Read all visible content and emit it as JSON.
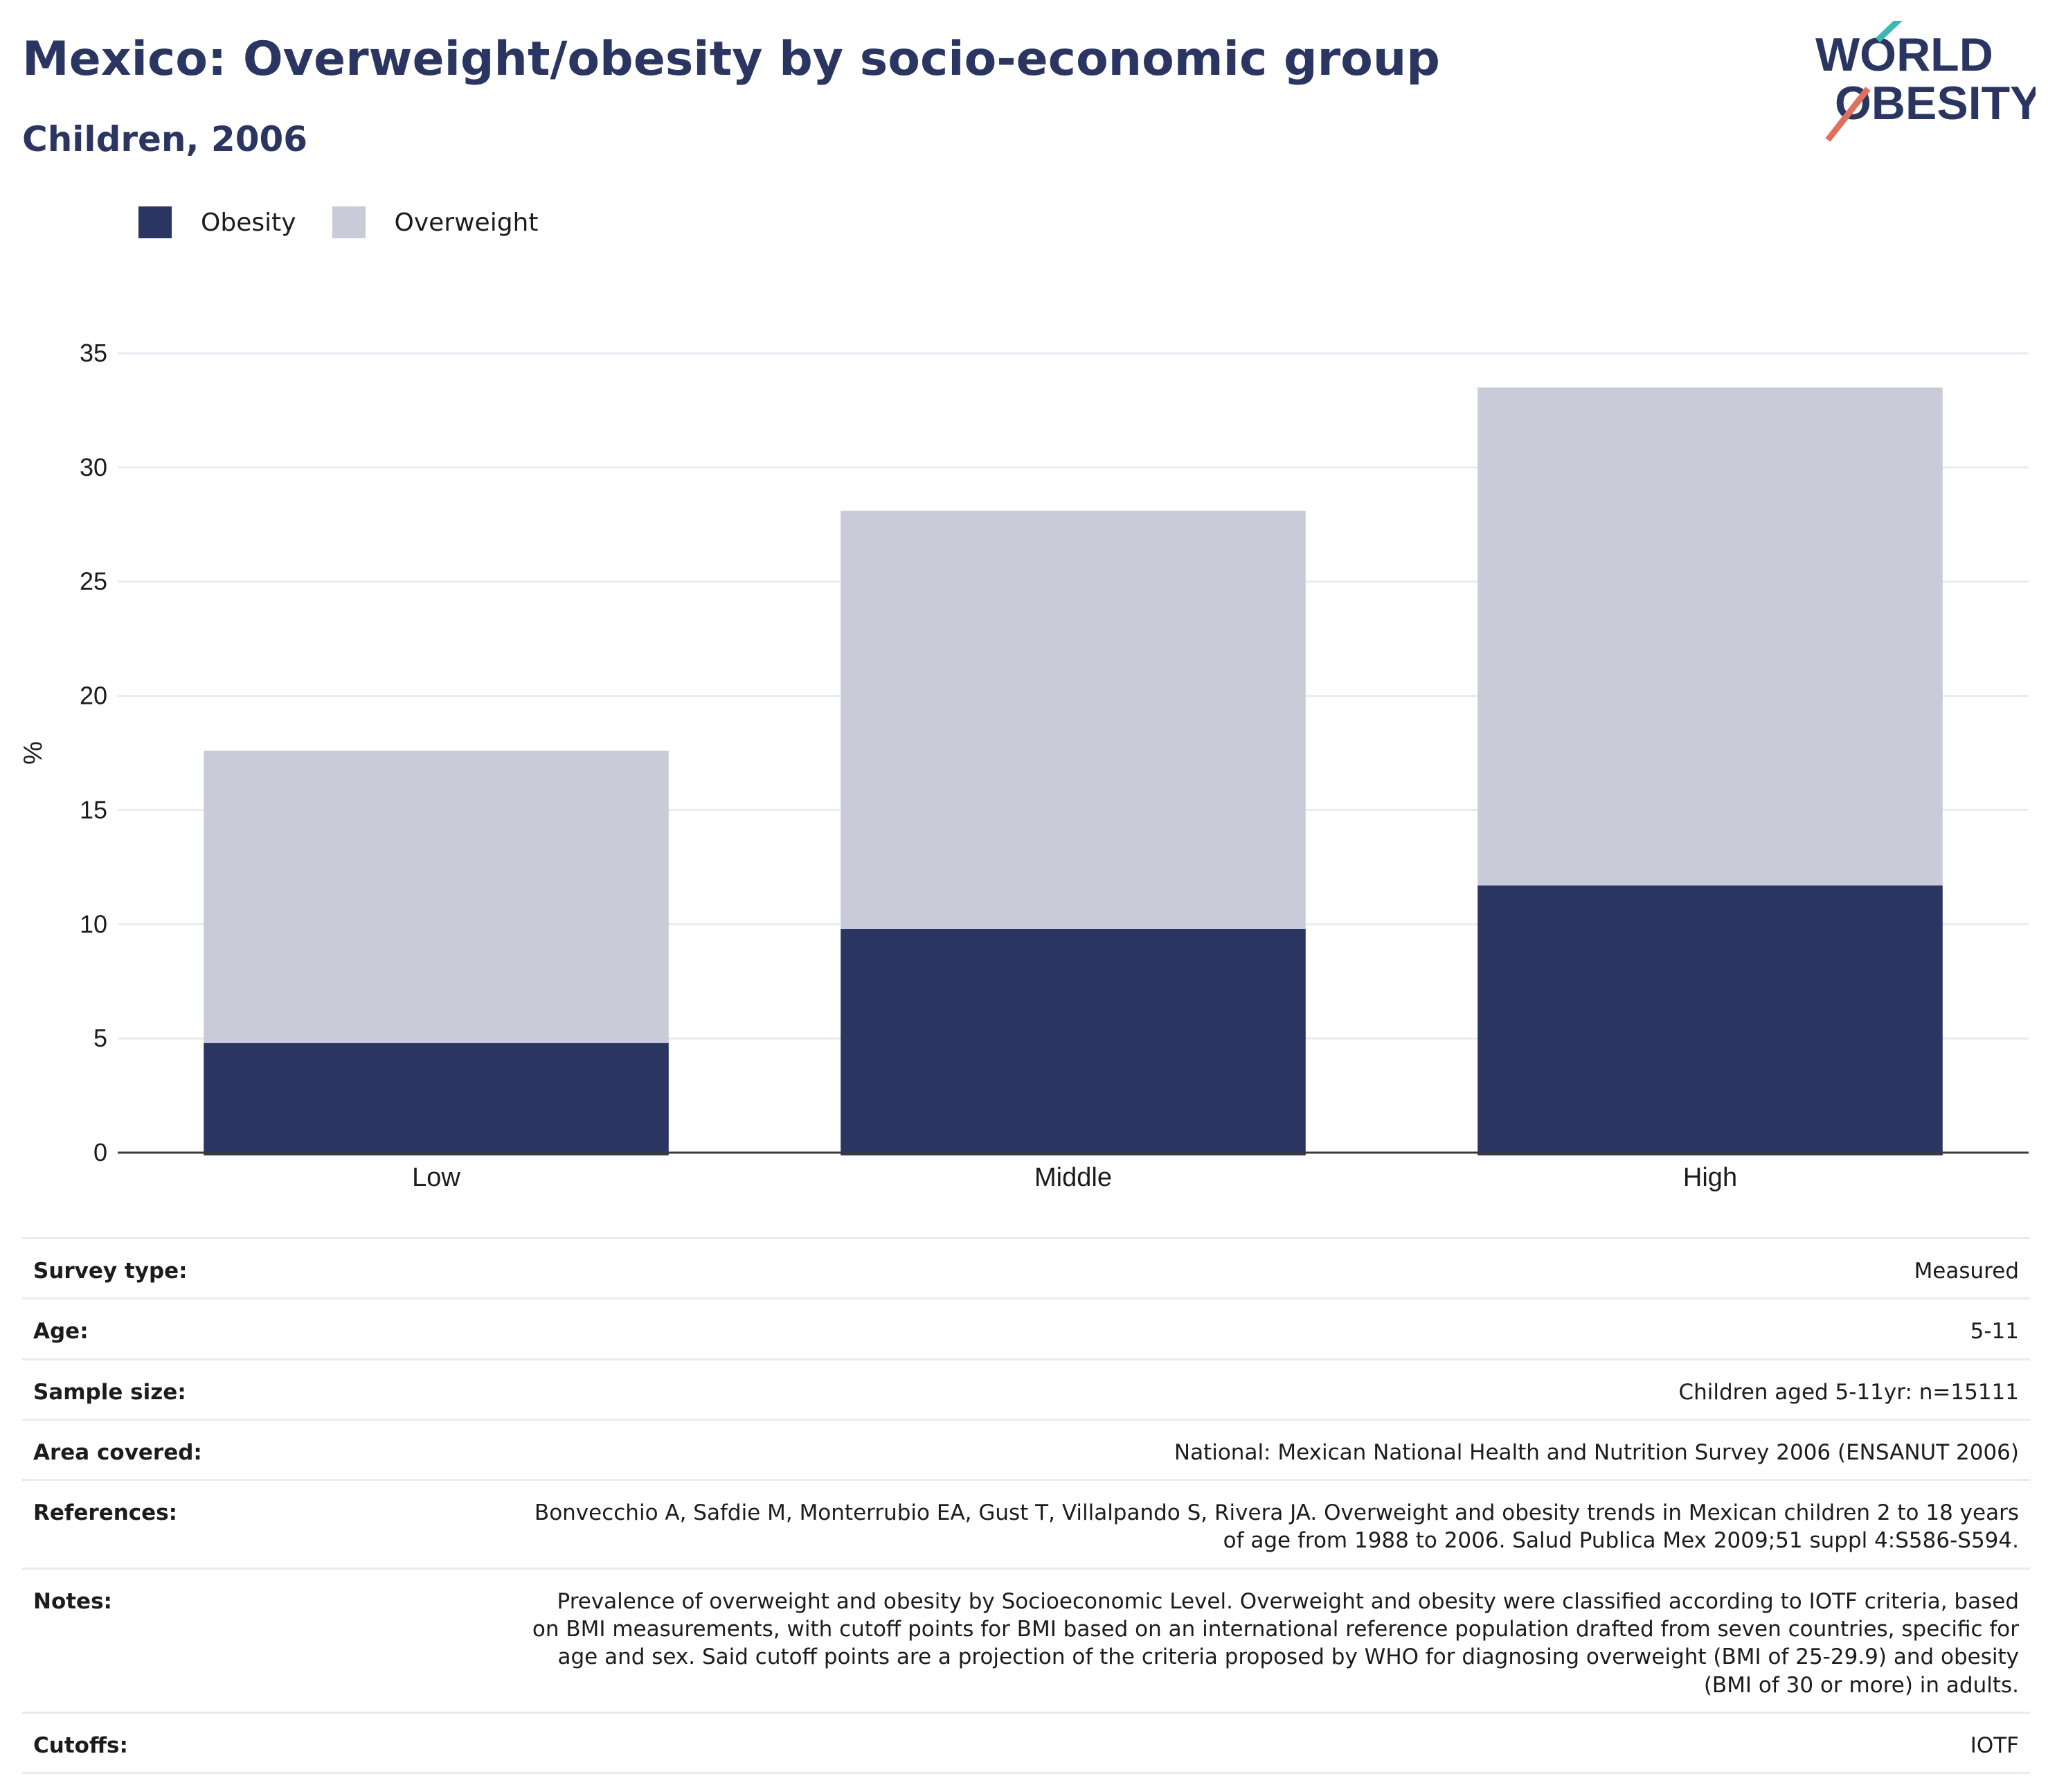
{
  "header": {
    "title": "Mexico: Overweight/obesity by socio-economic group",
    "subtitle": "Children, 2006"
  },
  "logo": {
    "line1": "WORLD",
    "line2": "OBESITY"
  },
  "legend": {
    "items": [
      {
        "label": "Obesity",
        "color": "#2a3561"
      },
      {
        "label": "Overweight",
        "color": "#c9ccd8"
      }
    ]
  },
  "chart_data": {
    "type": "bar",
    "stacked": true,
    "categories": [
      "Low",
      "Middle",
      "High"
    ],
    "series": [
      {
        "name": "Obesity",
        "values": [
          4.8,
          9.8,
          11.7
        ],
        "color": "#2a3561"
      },
      {
        "name": "Overweight",
        "values": [
          12.8,
          18.3,
          21.8
        ],
        "color": "#c9ccd8"
      }
    ],
    "xlabel": "",
    "ylabel": "%",
    "ylim": [
      0,
      35
    ],
    "yticks": [
      0,
      5,
      10,
      15,
      20,
      25,
      30,
      35
    ],
    "grid": true,
    "legend_position": "top-left"
  },
  "meta": {
    "rows": [
      {
        "label": "Survey type:",
        "value": "Measured"
      },
      {
        "label": "Age:",
        "value": "5-11"
      },
      {
        "label": "Sample size:",
        "value": "Children aged 5-11yr: n=15111"
      },
      {
        "label": "Area covered:",
        "value": "National: Mexican National Health and Nutrition Survey 2006 (ENSANUT 2006)"
      },
      {
        "label": "References:",
        "value": "Bonvecchio A, Safdie M, Monterrubio EA, Gust T, Villalpando S, Rivera JA. Overweight and obesity trends in Mexican children 2 to 18 years of age from 1988 to 2006. Salud Publica Mex 2009;51 suppl 4:S586-S594."
      },
      {
        "label": "Notes:",
        "value": "Prevalence of overweight and obesity by Socioeconomic Level. Overweight and obesity were classified according to IOTF criteria, based on BMI measurements, with cutoff points for BMI based on an international reference population drafted from seven countries, specific for age and sex. Said cutoff points are a projection of the criteria proposed by WHO for diagnosing overweight (BMI of 25-29.9) and obesity (BMI of 30 or more) in adults."
      },
      {
        "label": "Cutoffs:",
        "value": "IOTF"
      }
    ]
  }
}
